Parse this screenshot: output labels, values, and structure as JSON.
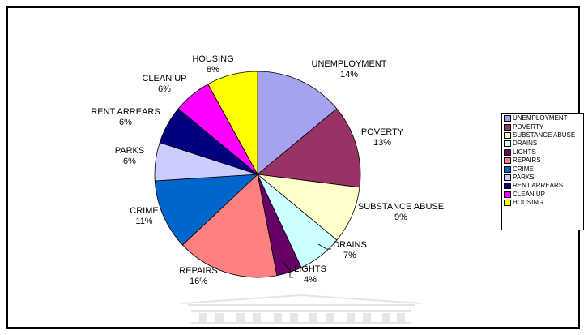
{
  "chart_data": {
    "type": "pie",
    "title": "",
    "slices": [
      {
        "label": "UNEMPLOYMENT",
        "value": 14,
        "display": "14%",
        "color": "#A3A3F0"
      },
      {
        "label": "POVERTY",
        "value": 13,
        "display": "13%",
        "color": "#993366"
      },
      {
        "label": "SUBSTANCE ABUSE",
        "value": 9,
        "display": "9%",
        "color": "#FFFFCC"
      },
      {
        "label": "DRAINS",
        "value": 7,
        "display": "7%",
        "color": "#CCFFFF"
      },
      {
        "label": "LIGHTS",
        "value": 4,
        "display": "4%",
        "color": "#660066"
      },
      {
        "label": "REPAIRS",
        "value": 16,
        "display": "16%",
        "color": "#FF8080"
      },
      {
        "label": "CRIME",
        "value": 11,
        "display": "11%",
        "color": "#0066CC"
      },
      {
        "label": "PARKS",
        "value": 6,
        "display": "6%",
        "color": "#CCCCFF"
      },
      {
        "label": "RENT ARREARS",
        "value": 6,
        "display": "6%",
        "color": "#000080"
      },
      {
        "label": "CLEAN UP",
        "value": 6,
        "display": "6%",
        "color": "#FF00FF"
      },
      {
        "label": "HOUSING",
        "value": 8,
        "display": "8%",
        "color": "#FFFF00"
      }
    ],
    "start": "top, clockwise",
    "legend_position": "right"
  }
}
